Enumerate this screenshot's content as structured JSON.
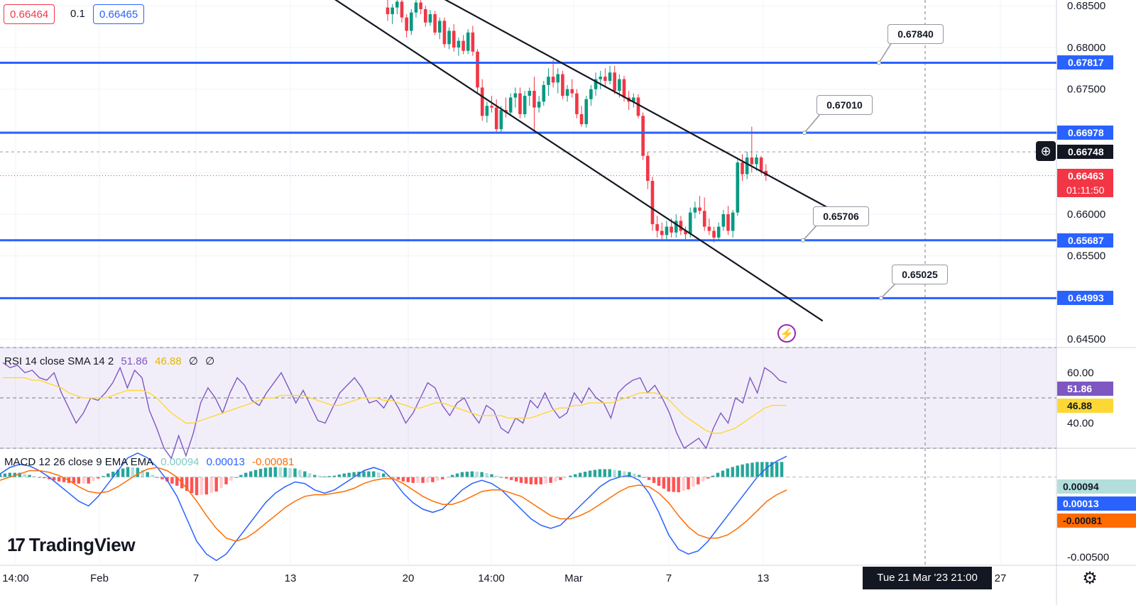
{
  "top_bar": {
    "bid": "0.66464",
    "spread": "0.1",
    "ask": "0.66465"
  },
  "crosshair_date": "Tue 21 Mar '23   21:00",
  "logo_text": "TradingView",
  "price_axis_labels": [
    "0.68500",
    "0.68000",
    "0.67500",
    "0.66000",
    "0.65500",
    "0.64500"
  ],
  "price_tags": [
    {
      "value": "0.67817",
      "color": "#2962ff"
    },
    {
      "value": "0.66978",
      "color": "#2962ff"
    },
    {
      "value": "0.66748",
      "color": "#131722"
    },
    {
      "value": "0.66463",
      "color": "#f23645"
    },
    {
      "value": "0.65687",
      "color": "#2962ff"
    },
    {
      "value": "0.64993",
      "color": "#2962ff"
    }
  ],
  "countdown": "01:11:50",
  "callouts": [
    "0.67840",
    "0.67010",
    "0.65706",
    "0.65025"
  ],
  "time_axis_labels": [
    "14:00",
    "Feb",
    "7",
    "13",
    "20",
    "14:00",
    "Mar",
    "7",
    "13",
    "27"
  ],
  "rsi": {
    "title": "RSI 14 close SMA 14 2",
    "value": "51.86",
    "sma": "46.88",
    "na1": "∅",
    "na2": "∅",
    "axis": [
      "60.00",
      "40.00"
    ]
  },
  "macd": {
    "title": "MACD 12 26 close 9 EMA EMA",
    "hist": "0.00094",
    "macd": "0.00013",
    "signal": "-0.00081",
    "axis": [
      "-0.00500"
    ]
  },
  "colors": {
    "level": "#2962ff",
    "up": "#089981",
    "down": "#f23645",
    "rsi": "#7e57c2",
    "rsi_sma": "#fdd835",
    "macd": "#2962ff",
    "signal": "#ff6d00"
  },
  "chart_data": [
    {
      "type": "candlestick",
      "title": "",
      "ylim": [
        0.644,
        0.6857
      ],
      "horizontal_levels": [
        0.67817,
        0.66978,
        0.65687,
        0.64993
      ],
      "current_price": 0.66463,
      "crosshair_price": 0.66748,
      "callout_values": [
        0.6784,
        0.6701,
        0.65706,
        0.65025
      ],
      "candles": [
        {
          "o": 0.6848,
          "h": 0.6858,
          "l": 0.6832,
          "c": 0.684
        },
        {
          "o": 0.684,
          "h": 0.6852,
          "l": 0.6828,
          "c": 0.6848
        },
        {
          "o": 0.6848,
          "h": 0.686,
          "l": 0.684,
          "c": 0.6855
        },
        {
          "o": 0.6855,
          "h": 0.6862,
          "l": 0.683,
          "c": 0.6836
        },
        {
          "o": 0.6836,
          "h": 0.684,
          "l": 0.6812,
          "c": 0.682
        },
        {
          "o": 0.682,
          "h": 0.6846,
          "l": 0.6815,
          "c": 0.6842
        },
        {
          "o": 0.6842,
          "h": 0.6858,
          "l": 0.6836,
          "c": 0.6854
        },
        {
          "o": 0.6854,
          "h": 0.686,
          "l": 0.684,
          "c": 0.6846
        },
        {
          "o": 0.6846,
          "h": 0.685,
          "l": 0.6825,
          "c": 0.683
        },
        {
          "o": 0.683,
          "h": 0.6845,
          "l": 0.6826,
          "c": 0.684
        },
        {
          "o": 0.684,
          "h": 0.6844,
          "l": 0.6815,
          "c": 0.6818
        },
        {
          "o": 0.6818,
          "h": 0.6836,
          "l": 0.681,
          "c": 0.6832
        },
        {
          "o": 0.6832,
          "h": 0.6836,
          "l": 0.68,
          "c": 0.6804
        },
        {
          "o": 0.6804,
          "h": 0.6824,
          "l": 0.6798,
          "c": 0.682
        },
        {
          "o": 0.682,
          "h": 0.6828,
          "l": 0.6795,
          "c": 0.68
        },
        {
          "o": 0.68,
          "h": 0.6812,
          "l": 0.679,
          "c": 0.6808
        },
        {
          "o": 0.6808,
          "h": 0.6815,
          "l": 0.6792,
          "c": 0.6796
        },
        {
          "o": 0.6796,
          "h": 0.6822,
          "l": 0.6792,
          "c": 0.6818
        },
        {
          "o": 0.6818,
          "h": 0.6826,
          "l": 0.679,
          "c": 0.6795
        },
        {
          "o": 0.6795,
          "h": 0.6798,
          "l": 0.6745,
          "c": 0.6752
        },
        {
          "o": 0.6752,
          "h": 0.6762,
          "l": 0.6712,
          "c": 0.6718
        },
        {
          "o": 0.6718,
          "h": 0.6735,
          "l": 0.671,
          "c": 0.673
        },
        {
          "o": 0.673,
          "h": 0.6742,
          "l": 0.6722,
          "c": 0.6728
        },
        {
          "o": 0.6728,
          "h": 0.6738,
          "l": 0.6698,
          "c": 0.6702
        },
        {
          "o": 0.6702,
          "h": 0.673,
          "l": 0.6698,
          "c": 0.6725
        },
        {
          "o": 0.6725,
          "h": 0.674,
          "l": 0.6716,
          "c": 0.6722
        },
        {
          "o": 0.6722,
          "h": 0.6745,
          "l": 0.6718,
          "c": 0.674
        },
        {
          "o": 0.674,
          "h": 0.6752,
          "l": 0.6728,
          "c": 0.6745
        },
        {
          "o": 0.6745,
          "h": 0.6752,
          "l": 0.6715,
          "c": 0.672
        },
        {
          "o": 0.672,
          "h": 0.6748,
          "l": 0.6716,
          "c": 0.6742
        },
        {
          "o": 0.6742,
          "h": 0.6752,
          "l": 0.673,
          "c": 0.6748
        },
        {
          "o": 0.6748,
          "h": 0.6765,
          "l": 0.67,
          "c": 0.6728
        },
        {
          "o": 0.6728,
          "h": 0.6742,
          "l": 0.6722,
          "c": 0.6735
        },
        {
          "o": 0.6735,
          "h": 0.676,
          "l": 0.673,
          "c": 0.6755
        },
        {
          "o": 0.6755,
          "h": 0.6775,
          "l": 0.6742,
          "c": 0.6765
        },
        {
          "o": 0.6765,
          "h": 0.6785,
          "l": 0.6752,
          "c": 0.6758
        },
        {
          "o": 0.6758,
          "h": 0.6775,
          "l": 0.6745,
          "c": 0.6768
        },
        {
          "o": 0.6768,
          "h": 0.6772,
          "l": 0.6738,
          "c": 0.6742
        },
        {
          "o": 0.6742,
          "h": 0.6755,
          "l": 0.6735,
          "c": 0.675
        },
        {
          "o": 0.675,
          "h": 0.6762,
          "l": 0.674,
          "c": 0.6745
        },
        {
          "o": 0.6745,
          "h": 0.675,
          "l": 0.6715,
          "c": 0.672
        },
        {
          "o": 0.672,
          "h": 0.673,
          "l": 0.6705,
          "c": 0.6708
        },
        {
          "o": 0.6708,
          "h": 0.6742,
          "l": 0.6704,
          "c": 0.6738
        },
        {
          "o": 0.6738,
          "h": 0.6755,
          "l": 0.673,
          "c": 0.675
        },
        {
          "o": 0.675,
          "h": 0.677,
          "l": 0.6742,
          "c": 0.6762
        },
        {
          "o": 0.6762,
          "h": 0.6772,
          "l": 0.675,
          "c": 0.6765
        },
        {
          "o": 0.6765,
          "h": 0.6775,
          "l": 0.6752,
          "c": 0.676
        },
        {
          "o": 0.676,
          "h": 0.6778,
          "l": 0.6756,
          "c": 0.677
        },
        {
          "o": 0.677,
          "h": 0.6778,
          "l": 0.6744,
          "c": 0.6748
        },
        {
          "o": 0.6748,
          "h": 0.6768,
          "l": 0.674,
          "c": 0.6762
        },
        {
          "o": 0.6762,
          "h": 0.6766,
          "l": 0.6735,
          "c": 0.674
        },
        {
          "o": 0.674,
          "h": 0.6748,
          "l": 0.6725,
          "c": 0.6735
        },
        {
          "o": 0.6735,
          "h": 0.6745,
          "l": 0.6728,
          "c": 0.674
        },
        {
          "o": 0.674,
          "h": 0.6744,
          "l": 0.6715,
          "c": 0.6718
        },
        {
          "o": 0.6718,
          "h": 0.6722,
          "l": 0.6665,
          "c": 0.667
        },
        {
          "o": 0.667,
          "h": 0.6675,
          "l": 0.663,
          "c": 0.664
        },
        {
          "o": 0.664,
          "h": 0.6645,
          "l": 0.658,
          "c": 0.6588
        },
        {
          "o": 0.6588,
          "h": 0.6598,
          "l": 0.6572,
          "c": 0.658
        },
        {
          "o": 0.658,
          "h": 0.659,
          "l": 0.657,
          "c": 0.6575
        },
        {
          "o": 0.6575,
          "h": 0.6592,
          "l": 0.657,
          "c": 0.6585
        },
        {
          "o": 0.6585,
          "h": 0.6595,
          "l": 0.6572,
          "c": 0.6578
        },
        {
          "o": 0.6578,
          "h": 0.66,
          "l": 0.6572,
          "c": 0.6592
        },
        {
          "o": 0.6592,
          "h": 0.6598,
          "l": 0.6575,
          "c": 0.658
        },
        {
          "o": 0.658,
          "h": 0.6585,
          "l": 0.657,
          "c": 0.6576
        },
        {
          "o": 0.6576,
          "h": 0.6608,
          "l": 0.6572,
          "c": 0.6602
        },
        {
          "o": 0.6602,
          "h": 0.6615,
          "l": 0.6595,
          "c": 0.6608
        },
        {
          "o": 0.6608,
          "h": 0.6622,
          "l": 0.66,
          "c": 0.6604
        },
        {
          "o": 0.6604,
          "h": 0.662,
          "l": 0.658,
          "c": 0.6585
        },
        {
          "o": 0.6585,
          "h": 0.6595,
          "l": 0.6575,
          "c": 0.658
        },
        {
          "o": 0.658,
          "h": 0.6585,
          "l": 0.6566,
          "c": 0.6572
        },
        {
          "o": 0.6572,
          "h": 0.659,
          "l": 0.6568,
          "c": 0.6585
        },
        {
          "o": 0.6585,
          "h": 0.6605,
          "l": 0.658,
          "c": 0.66
        },
        {
          "o": 0.66,
          "h": 0.661,
          "l": 0.6575,
          "c": 0.658
        },
        {
          "o": 0.658,
          "h": 0.6605,
          "l": 0.6572,
          "c": 0.6602
        },
        {
          "o": 0.6602,
          "h": 0.6668,
          "l": 0.6598,
          "c": 0.6662
        },
        {
          "o": 0.6662,
          "h": 0.6672,
          "l": 0.664,
          "c": 0.6648
        },
        {
          "o": 0.6648,
          "h": 0.6675,
          "l": 0.6642,
          "c": 0.6668
        },
        {
          "o": 0.6668,
          "h": 0.6705,
          "l": 0.665,
          "c": 0.666
        },
        {
          "o": 0.666,
          "h": 0.6672,
          "l": 0.6652,
          "c": 0.6668
        },
        {
          "o": 0.6668,
          "h": 0.667,
          "l": 0.6648,
          "c": 0.6652
        },
        {
          "o": 0.6652,
          "h": 0.666,
          "l": 0.664,
          "c": 0.6646
        }
      ],
      "channel_upper": {
        "p1": {
          "index": 0,
          "price": 0.6895
        },
        "p2": {
          "index": 94,
          "price": 0.6605
        }
      },
      "channel_lower": {
        "p1": {
          "index": -27,
          "price": 0.6917
        },
        "p2": {
          "index": 92,
          "price": 0.6472
        }
      }
    },
    {
      "type": "line",
      "title": "RSI 14 close SMA 14 2",
      "ylim": [
        30,
        70
      ],
      "bands": [
        70,
        30
      ],
      "mid_line": 50,
      "series": [
        {
          "name": "RSI",
          "values": [
            64,
            62,
            63,
            60,
            61,
            58,
            57,
            60,
            52,
            46,
            40,
            44,
            50,
            49,
            52,
            56,
            62,
            54,
            61,
            58,
            45,
            38,
            30,
            26,
            35,
            27,
            36,
            48,
            54,
            50,
            44,
            52,
            58,
            55,
            49,
            47,
            52,
            56,
            60,
            54,
            48,
            53,
            47,
            41,
            40,
            46,
            52,
            55,
            58,
            54,
            48,
            49,
            46,
            51,
            46,
            40,
            44,
            50,
            56,
            54,
            47,
            43,
            48,
            50,
            44,
            40,
            47,
            45,
            38,
            36,
            42,
            40,
            49,
            46,
            52,
            46,
            42,
            44,
            52,
            48,
            54,
            50,
            48,
            42,
            52,
            55,
            57,
            58,
            52,
            55,
            50,
            44,
            36,
            30,
            32,
            34,
            30,
            38,
            44,
            40,
            50,
            48,
            58,
            52,
            62,
            60,
            57,
            56
          ]
        },
        {
          "name": "SMA",
          "values": [
            58,
            58,
            58,
            58,
            57,
            57,
            56,
            55,
            54,
            52,
            51,
            50,
            50,
            50,
            50,
            51,
            52,
            53,
            53,
            53,
            52,
            50,
            47,
            44,
            42,
            40,
            40,
            41,
            42,
            43,
            44,
            45,
            46,
            47,
            48,
            49,
            50,
            50,
            51,
            51,
            51,
            51,
            50,
            49,
            48,
            47,
            47,
            48,
            49,
            50,
            50,
            50,
            49,
            49,
            48,
            47,
            46,
            46,
            47,
            48,
            48,
            47,
            46,
            45,
            44,
            43,
            43,
            43,
            43,
            42,
            42,
            42,
            42,
            43,
            44,
            45,
            46,
            46,
            47,
            47,
            48,
            48,
            48,
            48,
            49,
            50,
            51,
            52,
            52,
            52,
            51,
            49,
            46,
            43,
            41,
            39,
            37,
            36,
            36,
            37,
            38,
            40,
            42,
            44,
            46,
            47,
            47,
            47
          ]
        }
      ]
    },
    {
      "type": "line",
      "title": "MACD 12 26 close 9 EMA EMA",
      "ylim": [
        -0.0055,
        0.0018
      ],
      "series": [
        {
          "name": "MACD",
          "values": [
            0.0002,
            0.0006,
            0.0008,
            0.0007,
            0.0004,
            0.0,
            -0.0005,
            -0.001,
            -0.0015,
            -0.0018,
            -0.0012,
            -0.0004,
            0.0004,
            0.0012,
            0.0015,
            0.0012,
            0.0006,
            -0.0002,
            -0.0012,
            -0.0026,
            -0.004,
            -0.0048,
            -0.0052,
            -0.0048,
            -0.004,
            -0.0032,
            -0.0024,
            -0.0016,
            -0.001,
            -0.0006,
            -0.0003,
            -0.0004,
            -0.0008,
            -0.001,
            -0.0008,
            -0.0004,
            0.0,
            0.0004,
            0.0006,
            0.0004,
            -0.0002,
            -0.001,
            -0.0016,
            -0.002,
            -0.0022,
            -0.002,
            -0.0014,
            -0.0008,
            -0.0004,
            -0.0002,
            -0.0004,
            -0.0008,
            -0.0014,
            -0.002,
            -0.0026,
            -0.003,
            -0.0032,
            -0.003,
            -0.0024,
            -0.0018,
            -0.0012,
            -0.0006,
            -0.0002,
            0.0,
            0.0001,
            -0.0002,
            -0.001,
            -0.0022,
            -0.0036,
            -0.0045,
            -0.0048,
            -0.0046,
            -0.004,
            -0.0032,
            -0.0024,
            -0.0016,
            -0.0008,
            0.0,
            0.0006,
            0.001,
            0.0013
          ]
        },
        {
          "name": "Signal",
          "values": [
            -0.0002,
            0.0,
            0.0002,
            0.0004,
            0.0004,
            0.0003,
            0.0001,
            -0.0002,
            -0.0006,
            -0.0009,
            -0.001,
            -0.0009,
            -0.0006,
            -0.0002,
            0.0002,
            0.0005,
            0.0006,
            0.0004,
            0.0,
            -0.0007,
            -0.0015,
            -0.0024,
            -0.0032,
            -0.0038,
            -0.004,
            -0.0038,
            -0.0034,
            -0.0029,
            -0.0024,
            -0.0019,
            -0.0015,
            -0.0012,
            -0.0011,
            -0.0011,
            -0.001,
            -0.0009,
            -0.0007,
            -0.0004,
            -0.0002,
            -0.0001,
            -0.0001,
            -0.0004,
            -0.0008,
            -0.0012,
            -0.0015,
            -0.0017,
            -0.0017,
            -0.0015,
            -0.0012,
            -0.0009,
            -0.0008,
            -0.0008,
            -0.001,
            -0.0012,
            -0.0016,
            -0.002,
            -0.0024,
            -0.0026,
            -0.0026,
            -0.0024,
            -0.0021,
            -0.0017,
            -0.0013,
            -0.0009,
            -0.0006,
            -0.0005,
            -0.0006,
            -0.001,
            -0.0016,
            -0.0024,
            -0.0031,
            -0.0036,
            -0.0038,
            -0.0038,
            -0.0036,
            -0.0032,
            -0.0027,
            -0.0021,
            -0.0015,
            -0.0011,
            -0.0008
          ]
        }
      ]
    }
  ]
}
